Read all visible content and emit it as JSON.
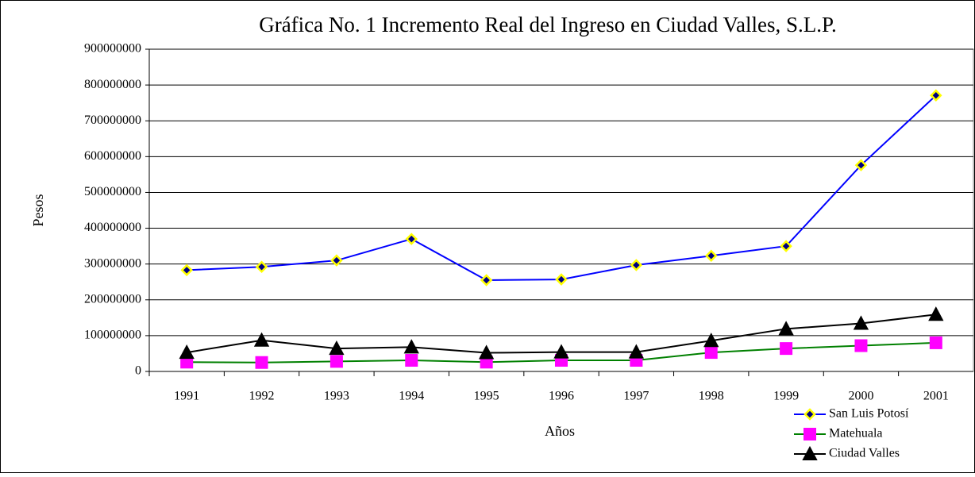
{
  "chart_data": {
    "type": "line",
    "title": "Gráfica No. 1 Incremento Real del Ingreso en Ciudad Valles, S.L.P.",
    "x_label": "Años",
    "y_label": "Pesos",
    "categories": [
      "1991",
      "1992",
      "1993",
      "1994",
      "1995",
      "1996",
      "1997",
      "1998",
      "1999",
      "2000",
      "2001"
    ],
    "series": [
      {
        "name": "San Luis Potosí",
        "color": "#0000ff",
        "marker": "diamond",
        "marker_color": "#000080",
        "marker_edge": "#ffff00",
        "values": [
          283000000,
          292000000,
          310000000,
          370000000,
          255000000,
          257000000,
          297000000,
          323000000,
          350000000,
          576000000,
          771000000
        ]
      },
      {
        "name": "Matehuala",
        "color": "#008000",
        "marker": "square",
        "marker_color": "#ff00ff",
        "marker_edge": "#ff00ff",
        "values": [
          26000000,
          25000000,
          28000000,
          31000000,
          26000000,
          31000000,
          31000000,
          53000000,
          64000000,
          72000000,
          80000000
        ]
      },
      {
        "name": "Ciudad Valles",
        "color": "#000000",
        "marker": "triangle",
        "marker_color": "#000000",
        "marker_edge": "#000000",
        "values": [
          53000000,
          87000000,
          64000000,
          68000000,
          52000000,
          54000000,
          54000000,
          86000000,
          119000000,
          134000000,
          159000000
        ]
      }
    ],
    "ylim": [
      0,
      900000000
    ],
    "yticks": [
      0,
      100000000,
      200000000,
      300000000,
      400000000,
      500000000,
      600000000,
      700000000,
      800000000,
      900000000
    ],
    "grid": true,
    "legend": "lower right"
  }
}
